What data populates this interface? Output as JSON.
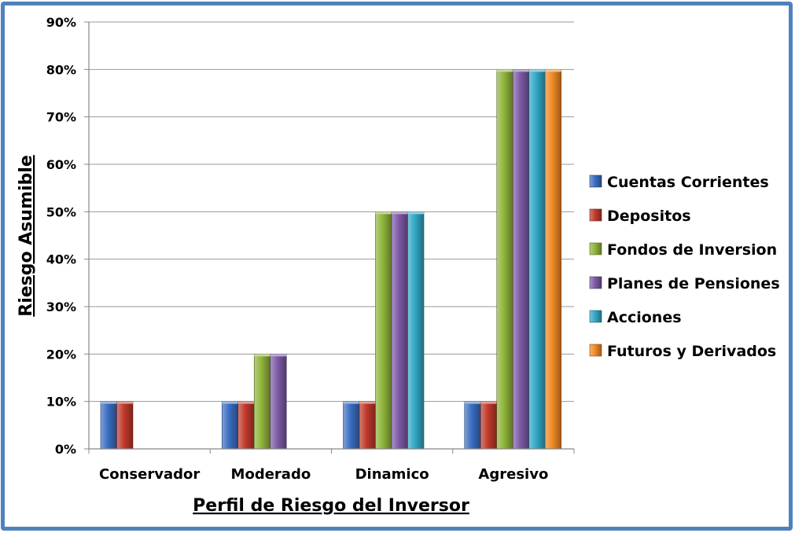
{
  "chart_data": {
    "type": "bar",
    "title": "",
    "xlabel": "Perfil de Riesgo del Inversor",
    "ylabel": "Riesgo Asumible",
    "ylim": [
      0,
      0.9
    ],
    "y_ticks": [
      "0%",
      "10%",
      "20%",
      "30%",
      "40%",
      "50%",
      "60%",
      "70%",
      "80%",
      "90%"
    ],
    "grid": true,
    "legend_position": "right",
    "categories": [
      "Conservador",
      "Moderado",
      "Dinamico",
      "Agresivo"
    ],
    "series": [
      {
        "name": "Cuentas Corrientes",
        "color": "#3a6dc2",
        "values": [
          0.1,
          0.1,
          0.1,
          0.1
        ]
      },
      {
        "name": "Depositos",
        "color": "#c0392b",
        "values": [
          0.1,
          0.1,
          0.1,
          0.1
        ]
      },
      {
        "name": "Fondos de Inversion",
        "color": "#8fb43a",
        "values": [
          0,
          0.2,
          0.5,
          0.8
        ]
      },
      {
        "name": "Planes de Pensiones",
        "color": "#7d5aa6",
        "values": [
          0,
          0.2,
          0.5,
          0.8
        ]
      },
      {
        "name": "Acciones",
        "color": "#31a7c4",
        "values": [
          0,
          0,
          0.5,
          0.8
        ]
      },
      {
        "name": "Futuros y Derivados",
        "color": "#f08a24",
        "values": [
          0,
          0,
          0,
          0.8
        ]
      }
    ]
  }
}
